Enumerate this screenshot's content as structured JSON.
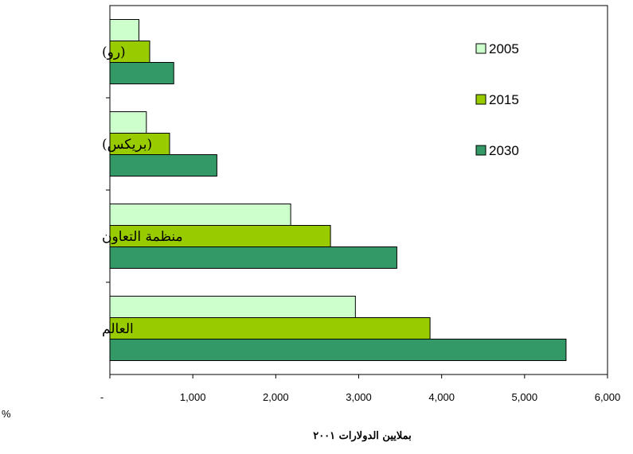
{
  "chart_data": {
    "type": "bar",
    "orientation": "horizontal",
    "categories": [
      "(رو)",
      "(بريكس)",
      "منظمة التعاون",
      "العالم"
    ],
    "series": [
      {
        "name": "2005",
        "color": "#ccffcc",
        "values": [
          350,
          440,
          2180,
          2960
        ]
      },
      {
        "name": "2015",
        "color": "#99cc00",
        "values": [
          480,
          720,
          2660,
          3860
        ]
      },
      {
        "name": "2030",
        "color": "#339966",
        "values": [
          770,
          1290,
          3460,
          5500
        ]
      }
    ],
    "xlim": [
      0,
      6000
    ],
    "xticks": [
      "-",
      "1,000",
      "2,000",
      "3,000",
      "4,000",
      "5,000",
      "6,000"
    ],
    "xtick_values": [
      0,
      1000,
      2000,
      3000,
      4000,
      5000,
      6000
    ],
    "xlabel": "بملايين الدولارات ٢٠٠١",
    "legend_position": "top-right",
    "grid": false,
    "stray_text": "%"
  }
}
